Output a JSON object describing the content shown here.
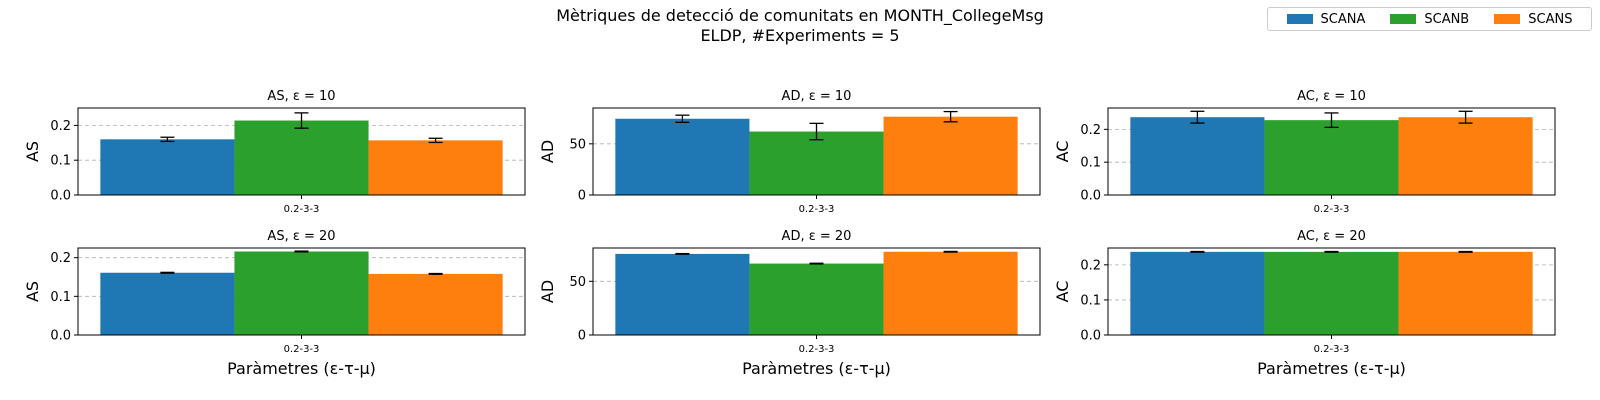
{
  "figure": {
    "title_line1": "Mètriques de detecció de comunitats en MONTH_CollegeMsg",
    "title_line2": "ELDP, #Experiments = 5"
  },
  "legend": {
    "items": [
      {
        "label": "SCANA",
        "color": "#1f77b4"
      },
      {
        "label": "SCANB",
        "color": "#2ca02c"
      },
      {
        "label": "SCANS",
        "color": "#ff7f0e"
      }
    ]
  },
  "chart_data": [
    {
      "type": "bar",
      "title": "AS, ε = 10",
      "xlabel": "",
      "ylabel": "AS",
      "categories": [
        "0.2-3-3"
      ],
      "ylim": [
        0,
        0.25
      ],
      "yticks": [
        0.0,
        0.1,
        0.2
      ],
      "ytick_labels": [
        "0.0",
        "0.1",
        "0.2"
      ],
      "grid": "y",
      "series": [
        {
          "name": "SCANA",
          "values": [
            0.16
          ],
          "errors": [
            0.006
          ]
        },
        {
          "name": "SCANB",
          "values": [
            0.214
          ],
          "errors": [
            0.022
          ]
        },
        {
          "name": "SCANS",
          "values": [
            0.157
          ],
          "errors": [
            0.006
          ]
        }
      ]
    },
    {
      "type": "bar",
      "title": "AD, ε = 10",
      "xlabel": "",
      "ylabel": "AD",
      "categories": [
        "0.2-3-3"
      ],
      "ylim": [
        0,
        85
      ],
      "yticks": [
        0,
        50
      ],
      "ytick_labels": [
        "0",
        "50"
      ],
      "grid": "y",
      "series": [
        {
          "name": "SCANA",
          "values": [
            74.5
          ],
          "errors": [
            3.5
          ]
        },
        {
          "name": "SCANB",
          "values": [
            62.0
          ],
          "errors": [
            8.0
          ]
        },
        {
          "name": "SCANS",
          "values": [
            76.5
          ],
          "errors": [
            5.0
          ]
        }
      ]
    },
    {
      "type": "bar",
      "title": "AC, ε = 10",
      "xlabel": "",
      "ylabel": "AC",
      "categories": [
        "0.2-3-3"
      ],
      "ylim": [
        0,
        0.265
      ],
      "yticks": [
        0.0,
        0.1,
        0.2
      ],
      "ytick_labels": [
        "0.0",
        "0.1",
        "0.2"
      ],
      "grid": "y",
      "series": [
        {
          "name": "SCANA",
          "values": [
            0.237
          ],
          "errors": [
            0.018
          ]
        },
        {
          "name": "SCANB",
          "values": [
            0.228
          ],
          "errors": [
            0.022
          ]
        },
        {
          "name": "SCANS",
          "values": [
            0.237
          ],
          "errors": [
            0.018
          ]
        }
      ]
    },
    {
      "type": "bar",
      "title": "AS, ε = 20",
      "xlabel": "Paràmetres (ε-τ-μ)",
      "ylabel": "AS",
      "categories": [
        "0.2-3-3"
      ],
      "ylim": [
        0,
        0.225
      ],
      "yticks": [
        0.0,
        0.1,
        0.2
      ],
      "ytick_labels": [
        "0.0",
        "0.1",
        "0.2"
      ],
      "grid": "y",
      "series": [
        {
          "name": "SCANA",
          "values": [
            0.161
          ],
          "errors": [
            0.001
          ]
        },
        {
          "name": "SCANB",
          "values": [
            0.216
          ],
          "errors": [
            0.001
          ]
        },
        {
          "name": "SCANS",
          "values": [
            0.158
          ],
          "errors": [
            0.001
          ]
        }
      ]
    },
    {
      "type": "bar",
      "title": "AD, ε = 20",
      "xlabel": "Paràmetres (ε-τ-μ)",
      "ylabel": "AD",
      "categories": [
        "0.2-3-3"
      ],
      "ylim": [
        0,
        81
      ],
      "yticks": [
        0,
        50
      ],
      "ytick_labels": [
        "0",
        "50"
      ],
      "grid": "y",
      "series": [
        {
          "name": "SCANA",
          "values": [
            75.5
          ],
          "errors": [
            0.3
          ]
        },
        {
          "name": "SCANB",
          "values": [
            66.5
          ],
          "errors": [
            0.3
          ]
        },
        {
          "name": "SCANS",
          "values": [
            77.5
          ],
          "errors": [
            0.3
          ]
        }
      ]
    },
    {
      "type": "bar",
      "title": "AC, ε = 20",
      "xlabel": "Paràmetres (ε-τ-μ)",
      "ylabel": "AC",
      "categories": [
        "0.2-3-3"
      ],
      "ylim": [
        0,
        0.248
      ],
      "yticks": [
        0.0,
        0.1,
        0.2
      ],
      "ytick_labels": [
        "0.0",
        "0.1",
        "0.2"
      ],
      "grid": "y",
      "series": [
        {
          "name": "SCANA",
          "values": [
            0.237
          ],
          "errors": [
            0.001
          ]
        },
        {
          "name": "SCANB",
          "values": [
            0.237
          ],
          "errors": [
            0.001
          ]
        },
        {
          "name": "SCANS",
          "values": [
            0.237
          ],
          "errors": [
            0.001
          ]
        }
      ]
    }
  ]
}
